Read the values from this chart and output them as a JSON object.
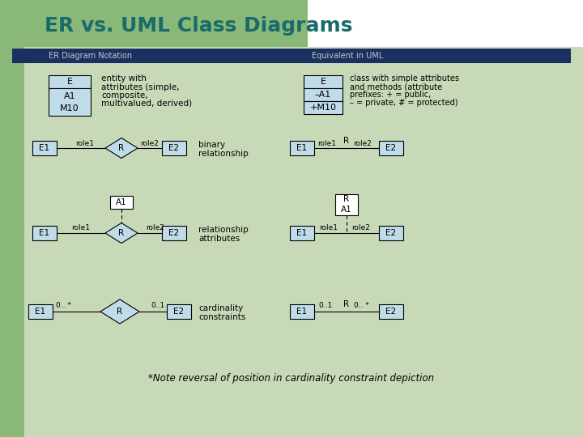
{
  "title": "ER vs. UML Class Diagrams",
  "title_color": "#1a6b6b",
  "bg_color": "#c8d9b8",
  "left_strip_color": "#8ab878",
  "header_bar_color": "#1a3060",
  "header_bar_text_color": "#c8c8c8",
  "left_col_label": "ER Diagram Notation",
  "right_col_label": "Equivalent in UML",
  "entity_fill": "#c0dce8",
  "note_text": "*Note reversal of position in cardinality constraint depiction",
  "white_bg": "#ffffff"
}
